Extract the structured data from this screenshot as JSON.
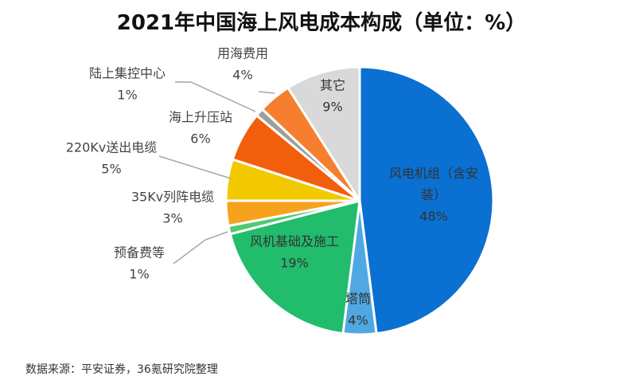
{
  "title": "2021年中国海上风电成本构成（单位：%）",
  "source": "数据来源：平安证券，36氪研究院整理",
  "chart_data": {
    "type": "pie",
    "title": "2021年中国海上风电成本构成（单位：%）",
    "unit": "%",
    "slices": [
      {
        "label": "风电机组（含安装）",
        "label_lines": [
          "风电机组（含安",
          "装）"
        ],
        "value": 48,
        "display": "48%",
        "color": "#0A70D2"
      },
      {
        "label": "塔筒",
        "label_lines": [
          "塔筒"
        ],
        "value": 4,
        "display": "4%",
        "color": "#4FA8E2"
      },
      {
        "label": "风机基础及施工",
        "label_lines": [
          "风机基础及施工"
        ],
        "value": 19,
        "display": "19%",
        "color": "#21BC6C"
      },
      {
        "label": "预备费等",
        "label_lines": [
          "预备费等"
        ],
        "value": 1,
        "display": "1%",
        "color": "#4FCB6E"
      },
      {
        "label": "35Kv列阵电缆",
        "label_lines": [
          "35Kv列阵电缆"
        ],
        "value": 3,
        "display": "3%",
        "color": "#F7A21C"
      },
      {
        "label": "220Kv送出电缆",
        "label_lines": [
          "220Kv送出电缆"
        ],
        "value": 5,
        "display": "5%",
        "color": "#F2C900"
      },
      {
        "label": "海上升压站",
        "label_lines": [
          "海上升压站"
        ],
        "value": 6,
        "display": "6%",
        "color": "#F25F0C"
      },
      {
        "label": "陆上集控中心",
        "label_lines": [
          "陆上集控中心"
        ],
        "value": 1,
        "display": "1%",
        "color": "#9E9E9E"
      },
      {
        "label": "用海费用",
        "label_lines": [
          "用海费用"
        ],
        "value": 4,
        "display": "4%",
        "color": "#F57F2E"
      },
      {
        "label": "其它",
        "label_lines": [
          "其它"
        ],
        "value": 9,
        "display": "9%",
        "color": "#D9D9D9"
      }
    ]
  }
}
